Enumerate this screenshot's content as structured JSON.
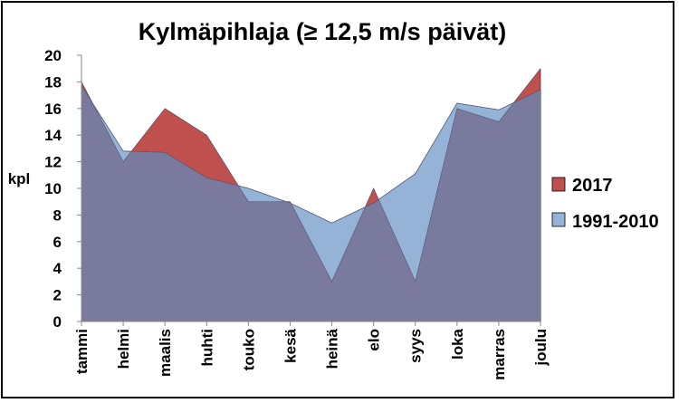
{
  "chart_data": {
    "type": "area",
    "title": "Kylmäpihlaja (≥ 12,5 m/s päivät)",
    "ylabel": "kpl",
    "xlabel": "",
    "categories": [
      "tammi",
      "helmi",
      "maalis",
      "huhti",
      "touko",
      "kesä",
      "heinä",
      "elo",
      "syys",
      "loka",
      "marras",
      "joulu"
    ],
    "ylim": [
      0,
      20
    ],
    "yticks": [
      0,
      2,
      4,
      6,
      8,
      10,
      12,
      14,
      16,
      18,
      20
    ],
    "grid": false,
    "legend_position": "right",
    "series": [
      {
        "name": "2017",
        "color": "#c0504d",
        "values": [
          18,
          12,
          16,
          14,
          9,
          9,
          3,
          10,
          3,
          16,
          15,
          19
        ]
      },
      {
        "name": "1991-2010",
        "color": "#95b3d7",
        "values": [
          17.7,
          12.8,
          12.7,
          10.8,
          10,
          8.9,
          7.4,
          8.9,
          11.1,
          16.4,
          15.9,
          17.4
        ]
      }
    ],
    "overlap_color": "#7a7a9e"
  }
}
